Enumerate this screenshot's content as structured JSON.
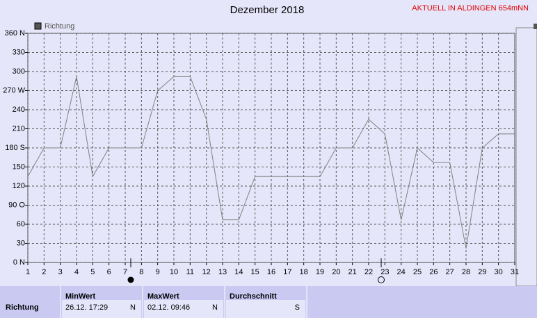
{
  "chart_data": {
    "type": "line",
    "title": "Dezember 2018",
    "annotation": "AKTUELL IN ALDINGEN 654mNN",
    "x": [
      1,
      2,
      3,
      4,
      5,
      6,
      7,
      8,
      9,
      10,
      11,
      12,
      13,
      14,
      15,
      16,
      17,
      18,
      19,
      20,
      21,
      22,
      23,
      24,
      25,
      26,
      27,
      28,
      29,
      30,
      31
    ],
    "xlim": [
      1,
      31
    ],
    "series": [
      {
        "name": "Richtung",
        "color": "#808080",
        "values": [
          135,
          180,
          180,
          292,
          135,
          180,
          180,
          180,
          270,
          292,
          292,
          225,
          67,
          67,
          135,
          135,
          135,
          135,
          135,
          180,
          180,
          225,
          202,
          67,
          180,
          157,
          157,
          22,
          180,
          202,
          202
        ]
      }
    ],
    "ylim": [
      0,
      360
    ],
    "yticks": [
      {
        "value": 0,
        "label": "0 N"
      },
      30,
      60,
      {
        "value": 90,
        "label": "90 O"
      },
      120,
      150,
      {
        "value": 180,
        "label": "180 S"
      },
      210,
      240,
      {
        "value": 270,
        "label": "270 W"
      },
      300,
      330,
      {
        "value": 360,
        "label": "360 N"
      }
    ],
    "grid": true,
    "legend": "top-left"
  },
  "table": {
    "row_label": "Richtung",
    "columns": [
      {
        "header": "MinWert",
        "time": "26.12.  17:29",
        "dir": "N"
      },
      {
        "header": "MaxWert",
        "time": "02.12.  09:46",
        "dir": "N"
      },
      {
        "header": "Durchschnitt",
        "time": "",
        "dir": "S"
      }
    ]
  }
}
